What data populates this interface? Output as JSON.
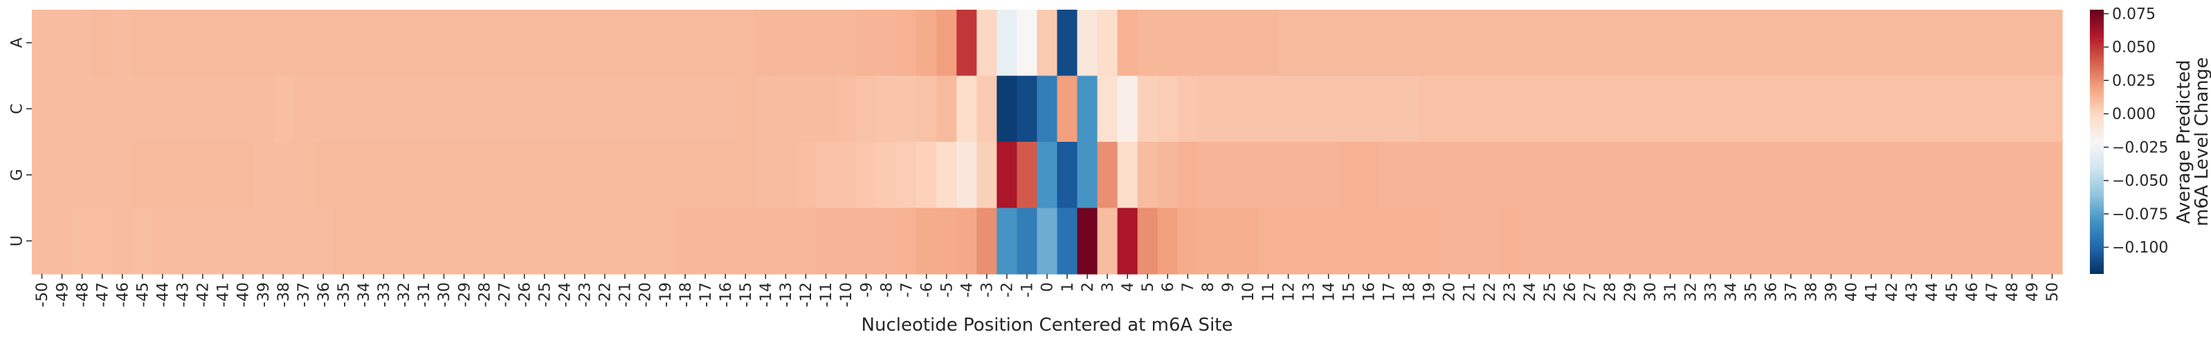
{
  "chart_data": {
    "type": "heatmap",
    "title": "",
    "xlabel": "Nucleotide Position Centered at m6A Site",
    "ylabel": "",
    "rows": [
      "A",
      "C",
      "G",
      "U"
    ],
    "x": [
      -50,
      -49,
      -48,
      -47,
      -46,
      -45,
      -44,
      -43,
      -42,
      -41,
      -40,
      -39,
      -38,
      -37,
      -36,
      -35,
      -34,
      -33,
      -32,
      -31,
      -30,
      -29,
      -28,
      -27,
      -26,
      -25,
      -24,
      -23,
      -22,
      -21,
      -20,
      -19,
      -18,
      -17,
      -16,
      -15,
      -14,
      -13,
      -12,
      -11,
      -10,
      -9,
      -8,
      -7,
      -6,
      -5,
      -4,
      -3,
      -2,
      -1,
      0,
      1,
      2,
      3,
      4,
      5,
      6,
      7,
      8,
      9,
      10,
      11,
      12,
      13,
      14,
      15,
      16,
      17,
      18,
      19,
      20,
      21,
      22,
      23,
      24,
      25,
      26,
      27,
      28,
      29,
      30,
      31,
      32,
      33,
      34,
      35,
      36,
      37,
      38,
      39,
      40,
      41,
      42,
      43,
      44,
      45,
      46,
      47,
      48,
      49,
      50
    ],
    "values": [
      [
        0.01,
        0.01,
        0.01,
        0.011,
        0.01,
        0.011,
        0.011,
        0.011,
        0.011,
        0.011,
        0.011,
        0.011,
        0.011,
        0.011,
        0.011,
        0.011,
        0.011,
        0.011,
        0.011,
        0.011,
        0.011,
        0.011,
        0.011,
        0.011,
        0.011,
        0.011,
        0.011,
        0.011,
        0.011,
        0.011,
        0.011,
        0.011,
        0.011,
        0.011,
        0.011,
        0.011,
        0.012,
        0.012,
        0.012,
        0.012,
        0.012,
        0.013,
        0.013,
        0.014,
        0.016,
        0.02,
        0.05,
        0.0,
        -0.03,
        -0.02,
        0.005,
        -0.11,
        -0.01,
        -0.003,
        0.014,
        0.012,
        0.012,
        0.012,
        0.012,
        0.012,
        0.012,
        0.012,
        0.011,
        0.011,
        0.011,
        0.011,
        0.011,
        0.011,
        0.011,
        0.011,
        0.011,
        0.011,
        0.011,
        0.011,
        0.011,
        0.011,
        0.011,
        0.011,
        0.011,
        0.011,
        0.011,
        0.011,
        0.011,
        0.011,
        0.011,
        0.011,
        0.011,
        0.011,
        0.011,
        0.011,
        0.011,
        0.011,
        0.011,
        0.011,
        0.011,
        0.011,
        0.011,
        0.011,
        0.011,
        0.011,
        0.011
      ],
      [
        0.01,
        0.01,
        0.01,
        0.01,
        0.01,
        0.01,
        0.01,
        0.01,
        0.01,
        0.01,
        0.01,
        0.01,
        0.009,
        0.01,
        0.01,
        0.01,
        0.01,
        0.01,
        0.01,
        0.01,
        0.01,
        0.01,
        0.01,
        0.01,
        0.01,
        0.01,
        0.01,
        0.01,
        0.01,
        0.01,
        0.01,
        0.01,
        0.01,
        0.01,
        0.01,
        0.011,
        0.01,
        0.01,
        0.01,
        0.01,
        0.009,
        0.008,
        0.007,
        0.007,
        0.008,
        0.011,
        -0.003,
        0.005,
        -0.115,
        -0.11,
        -0.09,
        0.02,
        -0.08,
        -0.005,
        -0.015,
        0.003,
        0.004,
        0.006,
        0.007,
        0.007,
        0.007,
        0.007,
        0.007,
        0.007,
        0.007,
        0.007,
        0.007,
        0.007,
        0.007,
        0.008,
        0.008,
        0.008,
        0.008,
        0.008,
        0.008,
        0.008,
        0.008,
        0.008,
        0.008,
        0.008,
        0.008,
        0.008,
        0.008,
        0.008,
        0.008,
        0.008,
        0.008,
        0.008,
        0.008,
        0.008,
        0.008,
        0.008,
        0.008,
        0.008,
        0.008,
        0.008,
        0.008,
        0.008,
        0.008,
        0.008,
        0.008
      ],
      [
        0.01,
        0.01,
        0.01,
        0.01,
        0.01,
        0.011,
        0.011,
        0.011,
        0.011,
        0.011,
        0.011,
        0.01,
        0.01,
        0.01,
        0.011,
        0.011,
        0.011,
        0.011,
        0.011,
        0.011,
        0.011,
        0.011,
        0.011,
        0.011,
        0.011,
        0.011,
        0.011,
        0.011,
        0.011,
        0.011,
        0.011,
        0.011,
        0.011,
        0.011,
        0.011,
        0.011,
        0.01,
        0.01,
        0.009,
        0.008,
        0.008,
        0.006,
        0.005,
        0.004,
        0.002,
        -0.003,
        -0.01,
        0.003,
        0.06,
        0.04,
        -0.08,
        -0.105,
        -0.08,
        0.025,
        -0.003,
        0.01,
        0.012,
        0.014,
        0.013,
        0.013,
        0.013,
        0.013,
        0.013,
        0.013,
        0.013,
        0.014,
        0.014,
        0.013,
        0.013,
        0.013,
        0.013,
        0.013,
        0.013,
        0.013,
        0.013,
        0.013,
        0.013,
        0.013,
        0.013,
        0.013,
        0.013,
        0.013,
        0.013,
        0.013,
        0.013,
        0.013,
        0.013,
        0.013,
        0.013,
        0.013,
        0.013,
        0.013,
        0.013,
        0.013,
        0.013,
        0.013,
        0.013,
        0.013,
        0.013,
        0.013,
        0.013
      ],
      [
        0.01,
        0.01,
        0.009,
        0.009,
        0.01,
        0.009,
        0.01,
        0.01,
        0.01,
        0.01,
        0.01,
        0.01,
        0.01,
        0.01,
        0.01,
        0.011,
        0.011,
        0.011,
        0.011,
        0.011,
        0.011,
        0.011,
        0.011,
        0.011,
        0.011,
        0.011,
        0.011,
        0.011,
        0.011,
        0.011,
        0.011,
        0.011,
        0.012,
        0.012,
        0.012,
        0.012,
        0.012,
        0.012,
        0.012,
        0.013,
        0.013,
        0.013,
        0.013,
        0.014,
        0.016,
        0.016,
        0.017,
        0.025,
        -0.08,
        -0.09,
        -0.07,
        -0.095,
        0.075,
        0.01,
        0.06,
        0.025,
        0.02,
        0.016,
        0.015,
        0.015,
        0.015,
        0.014,
        0.014,
        0.014,
        0.014,
        0.014,
        0.014,
        0.014,
        0.014,
        0.014,
        0.013,
        0.013,
        0.013,
        0.014,
        0.013,
        0.013,
        0.013,
        0.013,
        0.013,
        0.013,
        0.013,
        0.013,
        0.013,
        0.013,
        0.013,
        0.013,
        0.013,
        0.013,
        0.013,
        0.013,
        0.013,
        0.013,
        0.013,
        0.013,
        0.013,
        0.013,
        0.013,
        0.013,
        0.013,
        0.013,
        0.013
      ]
    ],
    "colorbar": {
      "label_line1": "Average Predicted",
      "label_line2": "m6A Level Change",
      "vmin": -0.12,
      "vmax": 0.078,
      "ticks": [
        0.075,
        0.05,
        0.025,
        0.0,
        -0.025,
        -0.05,
        -0.075,
        -0.1
      ],
      "tick_labels": [
        "0.075",
        "0.050",
        "0.025",
        "0.000",
        "−0.025",
        "−0.050",
        "−0.075",
        "−0.100"
      ],
      "colormap": "RdBu_r",
      "stops": [
        "#053061",
        "#2166ac",
        "#4393c3",
        "#92c5de",
        "#d1e5f0",
        "#f7f7f7",
        "#fddbc7",
        "#f4a582",
        "#d6604d",
        "#b2182b",
        "#67001f"
      ]
    }
  }
}
